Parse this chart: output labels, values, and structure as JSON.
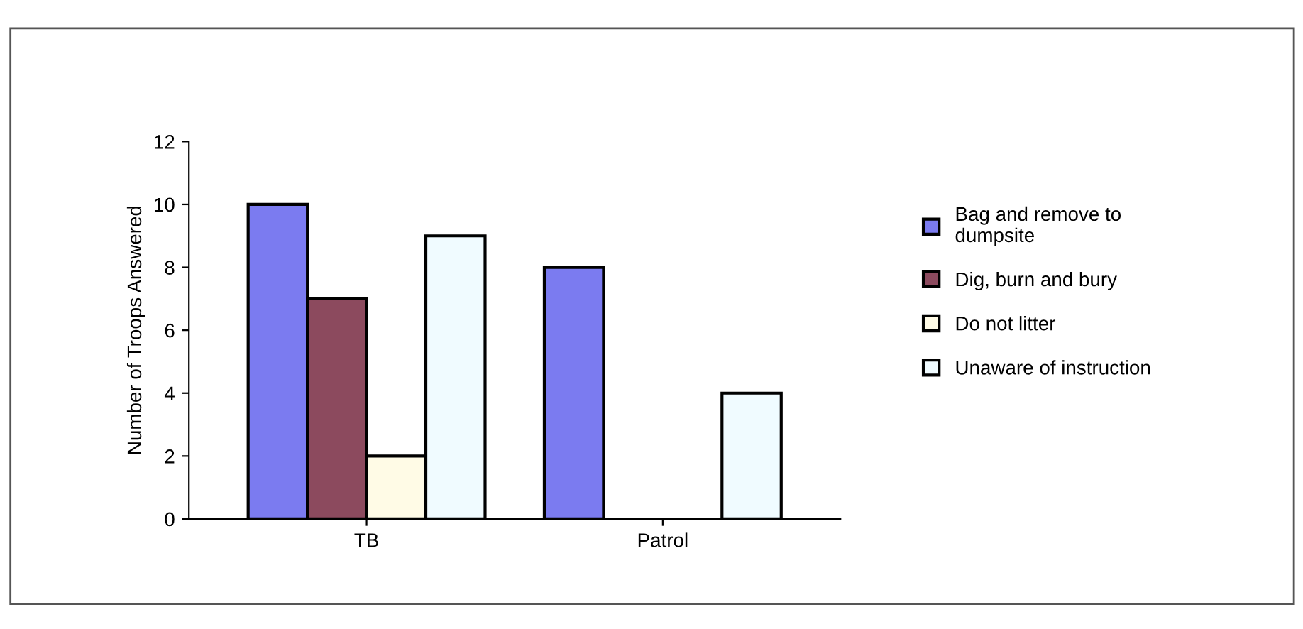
{
  "chart_data": {
    "type": "bar",
    "ylabel": "Number of Troops Answered",
    "categories": [
      "TB",
      "Patrol"
    ],
    "series": [
      {
        "name": "Bag and remove to\ndumpsite",
        "color": "#7b7bf0",
        "values": [
          10,
          8
        ]
      },
      {
        "name": "Dig, burn and bury",
        "color": "#8c4a5e",
        "values": [
          7,
          null
        ]
      },
      {
        "name": "Do not litter",
        "color": "#fffbe6",
        "values": [
          2,
          null
        ]
      },
      {
        "name": "Unaware of instruction",
        "color": "#f0fbff",
        "values": [
          9,
          4
        ]
      }
    ],
    "ylim": [
      0,
      12
    ],
    "yticks": [
      0,
      2,
      4,
      6,
      8,
      10,
      12
    ],
    "grid": false,
    "legend": "right"
  }
}
